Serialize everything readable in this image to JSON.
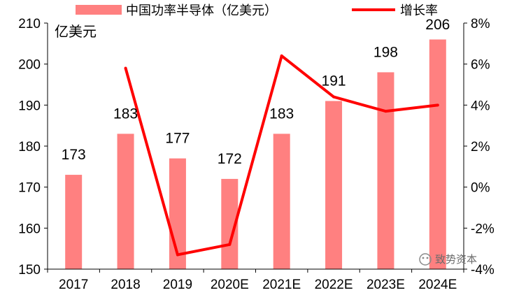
{
  "chart_data": {
    "type": "bar",
    "categories": [
      "2017",
      "2018",
      "2019",
      "2020E",
      "2021E",
      "2022E",
      "2023E",
      "2024E"
    ],
    "series": [
      {
        "name": "中国功率半导体（亿美元）",
        "type": "bar",
        "axis": "left",
        "values": [
          173,
          183,
          177,
          172,
          183,
          191,
          198,
          206
        ],
        "color": "#ff8080"
      },
      {
        "name": "增长率",
        "type": "line",
        "axis": "right",
        "values": [
          null,
          5.8,
          -3.3,
          -2.8,
          6.4,
          4.4,
          3.7,
          4.0
        ],
        "color": "#ff0000"
      }
    ],
    "data_labels": [
      "173",
      "183",
      "177",
      "172",
      "183",
      "191",
      "198",
      "206"
    ],
    "ylabel": "亿美元",
    "ylim": [
      150,
      210
    ],
    "y_ticks": [
      "150",
      "160",
      "170",
      "180",
      "190",
      "200",
      "210"
    ],
    "y2lim": [
      -4,
      8
    ],
    "y2_ticks": [
      "-4%",
      "-2%",
      "0%",
      "2%",
      "4%",
      "6%",
      "8%"
    ],
    "legend_position": "top",
    "grid": false
  },
  "watermark": "致势资本"
}
